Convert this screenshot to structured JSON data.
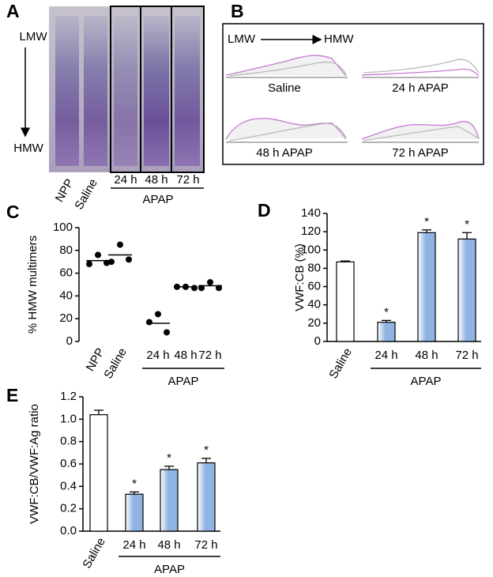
{
  "gel": {
    "label": "A",
    "markers": [
      "LMW",
      "HMW"
    ],
    "lanes": [
      "NPP",
      "Saline",
      "24 h",
      "48 h",
      "72 h"
    ],
    "group": "APAP"
  },
  "densitometry": {
    "label": "B",
    "axis": [
      "LMW",
      "HMW"
    ],
    "traces": [
      "Saline",
      "24 h APAP",
      "48 h APAP",
      "72 h APAP"
    ]
  },
  "chart_data": [
    {
      "type": "dot",
      "panel_label": "C",
      "ylabel": "% HMW multimers",
      "categories": [
        "NPP",
        "Saline",
        "24 h",
        "48 h",
        "72 h"
      ],
      "values": [
        [
          68,
          76,
          69
        ],
        [
          70,
          85,
          72
        ],
        [
          17,
          24,
          8
        ],
        [
          48,
          48,
          47
        ],
        [
          47,
          52,
          47
        ]
      ],
      "means": [
        71,
        76,
        16,
        48,
        49
      ],
      "ylim": [
        0,
        100
      ],
      "yticks": [
        0,
        20,
        40,
        60,
        80,
        100
      ],
      "group_label": "APAP",
      "color": "#000000"
    },
    {
      "type": "bar",
      "panel_label": "D",
      "ylabel": "VWF:CB (%)",
      "categories": [
        "Saline",
        "24 h",
        "48 h",
        "72 h"
      ],
      "values": [
        87,
        21,
        119,
        112
      ],
      "errors": [
        1,
        2,
        3,
        7
      ],
      "annotations": [
        null,
        "*",
        "*",
        "*"
      ],
      "colors": [
        "#ffffff",
        "#8fb3e3",
        "#8fb3e3",
        "#8fb3e3"
      ],
      "ylim": [
        0,
        140
      ],
      "yticks": [
        0,
        20,
        40,
        60,
        80,
        100,
        120,
        140
      ],
      "group_label": "APAP"
    },
    {
      "type": "bar",
      "panel_label": "E",
      "ylabel": "VWF:CB/VWF:Ag ratio",
      "categories": [
        "Saline",
        "24 h",
        "48 h",
        "72 h"
      ],
      "values": [
        1.04,
        0.33,
        0.55,
        0.61
      ],
      "errors": [
        0.04,
        0.02,
        0.03,
        0.04
      ],
      "annotations": [
        null,
        "*",
        "*",
        "*"
      ],
      "colors": [
        "#ffffff",
        "#8fb3e3",
        "#8fb3e3",
        "#8fb3e3"
      ],
      "ylim": [
        0,
        1.2
      ],
      "yticks": [
        {
          "value": 0,
          "label": "0.0"
        },
        {
          "value": 0.2,
          "label": "0.2"
        },
        {
          "value": 0.4,
          "label": "0.4"
        },
        {
          "value": 0.6,
          "label": "0.6"
        },
        {
          "value": 0.8,
          "label": "0.8"
        },
        {
          "value": 1,
          "label": "1.0"
        },
        {
          "value": 1.2,
          "label": "1.2"
        }
      ],
      "group_label": "APAP"
    }
  ]
}
